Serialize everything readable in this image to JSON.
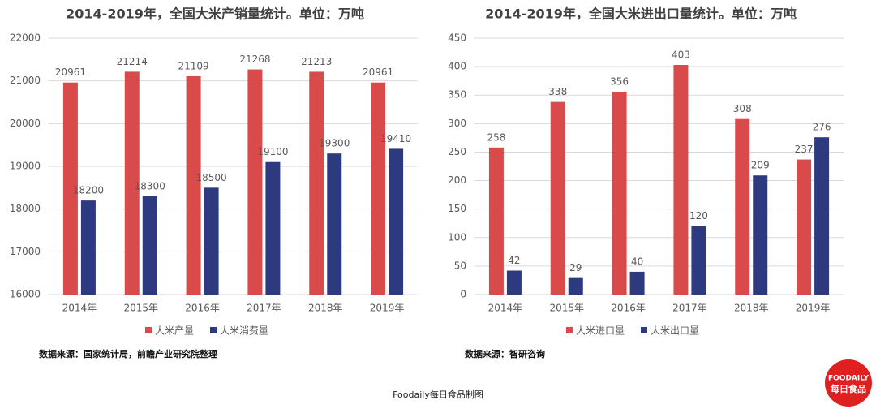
{
  "chart_data": [
    {
      "type": "bar",
      "title": "2014-2019年，全国大米产销量统计。单位：万吨",
      "categories": [
        "2014年",
        "2015年",
        "2016年",
        "2017年",
        "2018年",
        "2019年"
      ],
      "series": [
        {
          "name": "大米产量",
          "color": "#d94a4a",
          "values": [
            20961,
            21214,
            21109,
            21268,
            21213,
            20961
          ]
        },
        {
          "name": "大米消费量",
          "color": "#2e3a80",
          "values": [
            18200,
            18300,
            18500,
            19100,
            19300,
            19410
          ]
        }
      ],
      "ylim": [
        16000,
        22000
      ],
      "yticks": [
        16000,
        17000,
        18000,
        19000,
        20000,
        21000,
        22000
      ],
      "grid": true,
      "legend": "bottom",
      "source": "数据来源：国家统计局，前瞻产业研究院整理"
    },
    {
      "type": "bar",
      "title": "2014-2019年，全国大米进出口量统计。单位：万吨",
      "categories": [
        "2014年",
        "2015年",
        "2016年",
        "2017年",
        "2018年",
        "2019年"
      ],
      "series": [
        {
          "name": "大米进口量",
          "color": "#d94a4a",
          "values": [
            258,
            338,
            356,
            403,
            308,
            237
          ]
        },
        {
          "name": "大米出口量",
          "color": "#2e3a80",
          "values": [
            42,
            29,
            40,
            120,
            209,
            276
          ]
        }
      ],
      "ylim": [
        0,
        450
      ],
      "yticks": [
        0,
        50,
        100,
        150,
        200,
        250,
        300,
        350,
        400,
        450
      ],
      "grid": true,
      "legend": "bottom",
      "source": "数据来源：智研咨询"
    }
  ],
  "footer": {
    "credit": "Foodaily每日食品制图",
    "logo": [
      "FOODAILY",
      "每日食品"
    ]
  }
}
